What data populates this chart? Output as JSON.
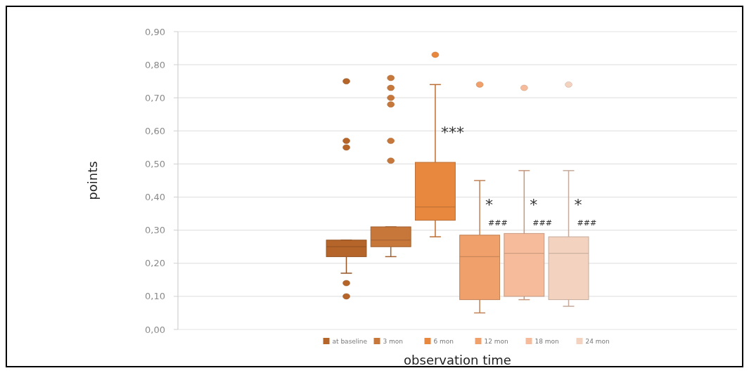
{
  "chart_data": {
    "type": "box",
    "ylabel": "points",
    "xlabel": "observation time",
    "categories": [
      null
    ],
    "ylim": [
      0,
      0.9
    ],
    "yticks": [
      {
        "value": 0,
        "label": "0,00"
      },
      {
        "value": 0.1,
        "label": "0,10"
      },
      {
        "value": 0.2,
        "label": "0,20"
      },
      {
        "value": 0.3,
        "label": "0,30"
      },
      {
        "value": 0.4,
        "label": "0,40"
      },
      {
        "value": 0.5,
        "label": "0,50"
      },
      {
        "value": 0.6,
        "label": "0,60"
      },
      {
        "value": 0.7,
        "label": "0,70"
      },
      {
        "value": 0.8,
        "label": "0,80"
      },
      {
        "value": 0.9,
        "label": "0,90"
      }
    ],
    "grid": "y",
    "legend": "bottom",
    "series": [
      {
        "name": "at baseline",
        "color": "#b5652a",
        "boxes": [
          {
            "low": 0.17,
            "q1": 0.22,
            "median": 0.25,
            "q3": 0.27,
            "high": 0.27,
            "outliers": [
              0.75,
              0.57,
              0.55,
              0.14,
              0.1
            ]
          }
        ]
      },
      {
        "name": "3 mon",
        "color": "#c8773a",
        "boxes": [
          {
            "low": 0.22,
            "q1": 0.25,
            "median": 0.27,
            "q3": 0.31,
            "high": 0.31,
            "outliers": [
              0.76,
              0.73,
              0.7,
              0.68,
              0.57,
              0.51
            ]
          }
        ]
      },
      {
        "name": "6 mon",
        "color": "#e8883f",
        "boxes": [
          {
            "low": 0.28,
            "q1": 0.33,
            "median": 0.37,
            "q3": 0.505,
            "high": 0.74,
            "outliers": [
              0.83
            ]
          }
        ]
      },
      {
        "name": "12 mon",
        "color": "#f0a06a",
        "boxes": [
          {
            "low": 0.05,
            "q1": 0.09,
            "median": 0.22,
            "q3": 0.285,
            "high": 0.45,
            "outliers": [
              0.74
            ]
          }
        ]
      },
      {
        "name": "18 mon",
        "color": "#f5bb9a",
        "boxes": [
          {
            "low": 0.09,
            "q1": 0.1,
            "median": 0.23,
            "q3": 0.29,
            "high": 0.48,
            "outliers": [
              0.73
            ]
          }
        ]
      },
      {
        "name": "24 mon",
        "color": "#f3d2c0",
        "boxes": [
          {
            "low": 0.07,
            "q1": 0.09,
            "median": 0.23,
            "q3": 0.28,
            "high": 0.48,
            "outliers": [
              0.74
            ]
          }
        ]
      }
    ],
    "annotations": [
      "***",
      "*",
      "###",
      "*",
      "###",
      "*",
      "###"
    ]
  }
}
